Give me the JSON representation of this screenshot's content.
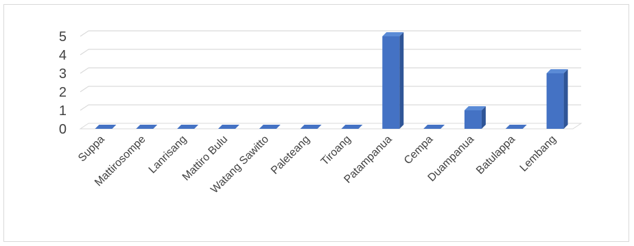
{
  "chart_data": {
    "type": "bar",
    "style": "3d-column",
    "title": "",
    "xlabel": "",
    "ylabel": "",
    "categories": [
      "Suppa",
      "Mattirosompe",
      "Lanrisang",
      "Mattiro Bulu",
      "Watang Sawitto",
      "Paleteang",
      "Tiroang",
      "Patampanua",
      "Cempa",
      "Duampanua",
      "Batulappa",
      "Lembang"
    ],
    "values": [
      0,
      0,
      0,
      0,
      0,
      0,
      0,
      5,
      0,
      1,
      0,
      3
    ],
    "ylim": [
      0,
      5
    ],
    "yticks": [
      "0",
      "1",
      "2",
      "3",
      "4",
      "5"
    ],
    "grid": true,
    "legend": "none",
    "colors": {
      "bar_front": "#4472c4",
      "bar_side": "#2f5597",
      "bar_top": "#5b8bd6",
      "grid": "#d9d9d9",
      "text": "#404040"
    }
  }
}
